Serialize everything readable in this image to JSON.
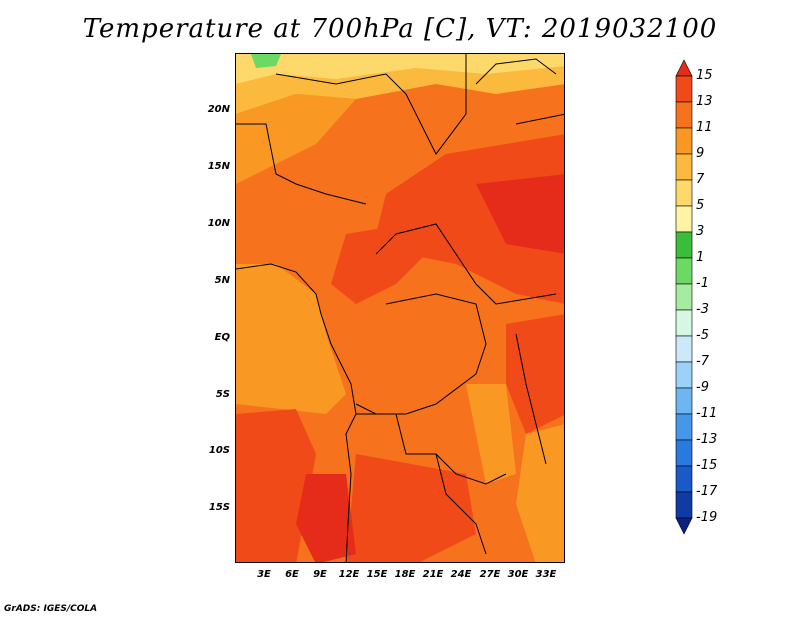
{
  "title": "Temperature at 700hPa [C], VT: 2019032100",
  "credit": "GrADS: IGES/COLA",
  "lat_labels": [
    "20N",
    "15N",
    "10N",
    "5N",
    "EQ",
    "5S",
    "10S",
    "15S"
  ],
  "lon_labels": [
    "3E",
    "6E",
    "9E",
    "12E",
    "15E",
    "18E",
    "21E",
    "24E",
    "27E",
    "30E",
    "33E"
  ],
  "colorbar": {
    "labels": [
      "15",
      "13",
      "11",
      "9",
      "7",
      "5",
      "3",
      "1",
      "-1",
      "-3",
      "-5",
      "-7",
      "-9",
      "-11",
      "-13",
      "-15",
      "-17",
      "-19"
    ],
    "colors": [
      "#e52b1a",
      "#f14a19",
      "#f6721d",
      "#f99923",
      "#fbb93d",
      "#fdd86a",
      "#fff3a6",
      "#3bbd3b",
      "#6cd964",
      "#a5eca0",
      "#d5f7e3",
      "#cbe9fb",
      "#9dd2f8",
      "#6eb6f2",
      "#4697ea",
      "#2a79df",
      "#1c59c8",
      "#103ba5",
      "#0b2082"
    ]
  }
}
